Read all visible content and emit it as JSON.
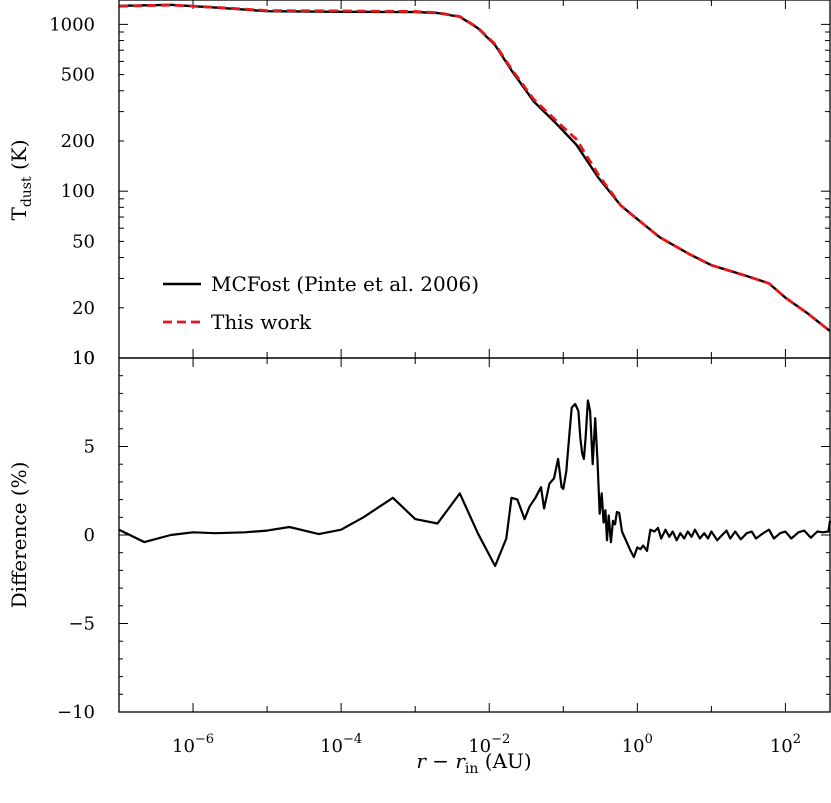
{
  "chart_data": [
    {
      "type": "line",
      "panel": "top",
      "xscale": "log",
      "yscale": "log",
      "xlim": [
        1e-07,
        400
      ],
      "ylim": [
        10,
        1400
      ],
      "ylabel": "T",
      "ylabel_sub": "dust",
      "ylabel_unit": " (K)",
      "yticks": [
        1000,
        500,
        200,
        100,
        50,
        20,
        10
      ],
      "ytick_labels": [
        "1000",
        "500",
        "200",
        "100",
        "50",
        "20",
        "10"
      ],
      "legend_position": "lower-left",
      "series": [
        {
          "name": "MCFost (Pinte et al. 2006)",
          "color": "#000000",
          "style": "solid",
          "x": [
            1e-07,
            5e-07,
            2e-06,
            1e-05,
            0.0001,
            0.001,
            0.002,
            0.004,
            0.007,
            0.012,
            0.02,
            0.04,
            0.08,
            0.15,
            0.3,
            0.6,
            1,
            2,
            5,
            10,
            30,
            60,
            100,
            200,
            400
          ],
          "y": [
            1290,
            1310,
            1260,
            1200,
            1190,
            1185,
            1170,
            1110,
            950,
            750,
            530,
            345,
            255,
            190,
            120,
            82,
            68,
            53,
            42,
            36,
            31,
            28,
            23,
            18.5,
            14.5
          ]
        },
        {
          "name": "This work",
          "color": "#e8161b",
          "style": "dashed",
          "x": [
            1e-07,
            5e-07,
            2e-06,
            1e-05,
            0.0001,
            0.001,
            0.002,
            0.004,
            0.007,
            0.012,
            0.02,
            0.04,
            0.08,
            0.15,
            0.3,
            0.6,
            1,
            2,
            5,
            10,
            30,
            60,
            100,
            200,
            400
          ],
          "y": [
            1285,
            1305,
            1265,
            1210,
            1205,
            1195,
            1175,
            1115,
            955,
            760,
            540,
            355,
            265,
            205,
            125,
            82,
            68,
            53,
            42,
            36,
            31,
            28,
            23,
            18.5,
            14.5
          ]
        }
      ]
    },
    {
      "type": "line",
      "panel": "bottom",
      "xscale": "log",
      "xlim": [
        1e-07,
        400
      ],
      "ylim": [
        -10,
        10
      ],
      "xlabel": "r − r",
      "xlabel_sub": "in",
      "xlabel_unit": " (AU)",
      "ylabel": "Difference (%)",
      "yticks": [
        10,
        5,
        0,
        -5,
        -10
      ],
      "ytick_labels": [
        "10",
        "5",
        "0",
        "−5",
        "−10"
      ],
      "xticks": [
        1e-06,
        0.0001,
        0.01,
        1,
        100
      ],
      "xtick_base": [
        "10",
        "10",
        "10",
        "10",
        "10"
      ],
      "xtick_exp": [
        "−6",
        "−4",
        "−2",
        "0",
        "2"
      ],
      "series": [
        {
          "name": "",
          "color": "#000000",
          "style": "solid",
          "x": [
            1e-07,
            2.2e-07,
            5e-07,
            1e-06,
            2e-06,
            5e-06,
            1e-05,
            2e-05,
            5e-05,
            0.0001,
            0.0002,
            0.0005,
            0.001,
            0.002,
            0.004,
            0.007,
            0.012,
            0.017,
            0.02,
            0.024,
            0.03,
            0.035,
            0.042,
            0.05,
            0.055,
            0.065,
            0.075,
            0.085,
            0.095,
            0.1,
            0.11,
            0.12,
            0.13,
            0.145,
            0.16,
            0.17,
            0.18,
            0.19,
            0.2,
            0.215,
            0.23,
            0.25,
            0.27,
            0.29,
            0.31,
            0.33,
            0.35,
            0.37,
            0.39,
            0.41,
            0.44,
            0.47,
            0.5,
            0.53,
            0.57,
            0.62,
            0.7,
            0.8,
            0.9,
            1.0,
            1.1,
            1.2,
            1.35,
            1.5,
            1.7,
            1.9,
            2.1,
            2.4,
            2.7,
            3.0,
            3.4,
            3.8,
            4.3,
            4.8,
            5.4,
            6,
            7,
            8,
            9,
            10,
            12,
            14,
            16,
            18,
            21,
            25,
            30,
            35,
            40,
            50,
            60,
            70,
            85,
            100,
            120,
            150,
            180,
            220,
            270,
            320,
            380,
            400
          ],
          "y": [
            0.3,
            -0.4,
            0.0,
            0.15,
            0.1,
            0.15,
            0.25,
            0.45,
            0.05,
            0.3,
            1.0,
            2.1,
            0.9,
            0.65,
            2.35,
            0.1,
            -1.75,
            -0.2,
            2.1,
            2.0,
            0.9,
            1.6,
            2.1,
            2.7,
            1.5,
            2.9,
            3.2,
            4.3,
            2.7,
            2.6,
            3.6,
            5.5,
            7.2,
            7.4,
            7.0,
            5.5,
            4.6,
            4.3,
            5.5,
            7.6,
            7.0,
            4.0,
            6.6,
            4.2,
            1.2,
            2.35,
            0.7,
            1.4,
            -0.3,
            1.1,
            -0.4,
            0.8,
            0.6,
            1.3,
            1.25,
            0.2,
            -0.3,
            -0.85,
            -1.25,
            -0.7,
            -0.8,
            -0.6,
            -0.9,
            0.3,
            0.2,
            0.4,
            -0.2,
            0.3,
            -0.1,
            0.2,
            -0.3,
            0.1,
            -0.2,
            0.2,
            -0.1,
            0.3,
            -0.2,
            0.1,
            -0.2,
            0.2,
            -0.3,
            0.0,
            0.25,
            -0.2,
            0.2,
            -0.25,
            0.1,
            0.2,
            -0.2,
            0.1,
            0.3,
            -0.2,
            0.1,
            0.2,
            -0.2,
            0.15,
            0.25,
            -0.15,
            0.2,
            0.15,
            0.2,
            0.8
          ]
        }
      ]
    }
  ]
}
